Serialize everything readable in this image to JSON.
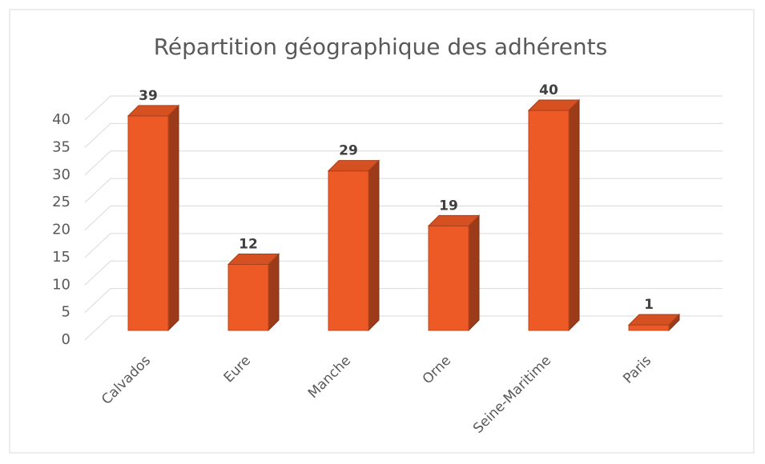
{
  "chart_data": {
    "type": "bar3d",
    "title": "Répartition géographique des adhérents",
    "categories": [
      "Calvados",
      "Eure",
      "Manche",
      "Orne",
      "Seine-Maritime",
      "Paris"
    ],
    "values": [
      39,
      12,
      29,
      19,
      40,
      1
    ],
    "color": "#ee5a26",
    "ylim": [
      0,
      40
    ],
    "yticks": [
      0,
      5,
      10,
      15,
      20,
      25,
      30,
      35,
      40
    ],
    "grid": true
  }
}
